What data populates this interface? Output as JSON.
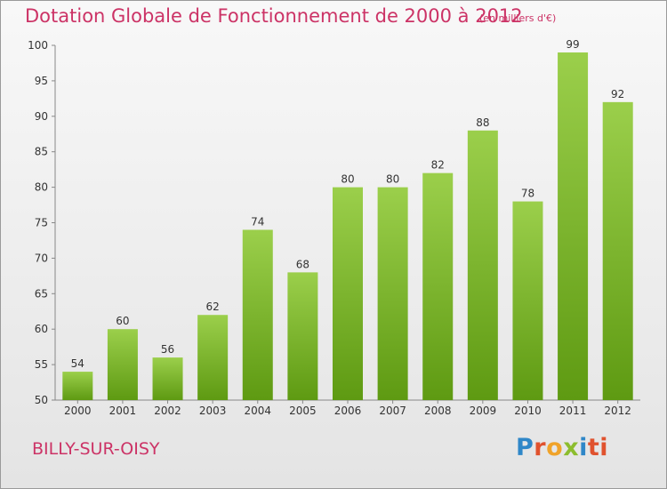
{
  "title": "Dotation Globale de Fonctionnement de 2000 à 2012",
  "unit_note": "(en milliers d'€)",
  "commune": "BILLY-SUR-OISY",
  "logo": {
    "letters": [
      "P",
      "r",
      "o",
      "x",
      "i",
      "ti"
    ]
  },
  "colors": {
    "title": "#cc3366",
    "bar_top": "#9bcf4b",
    "bar_bottom": "#5e9a12"
  },
  "chart_data": {
    "type": "bar",
    "categories": [
      "2000",
      "2001",
      "2002",
      "2003",
      "2004",
      "2005",
      "2006",
      "2007",
      "2008",
      "2009",
      "2010",
      "2011",
      "2012"
    ],
    "values": [
      54,
      60,
      56,
      62,
      74,
      68,
      80,
      80,
      82,
      88,
      78,
      99,
      92
    ],
    "ylim": [
      50,
      100
    ],
    "yticks": [
      50,
      55,
      60,
      65,
      70,
      75,
      80,
      85,
      90,
      95,
      100
    ],
    "grid": false,
    "data_labels": true
  }
}
